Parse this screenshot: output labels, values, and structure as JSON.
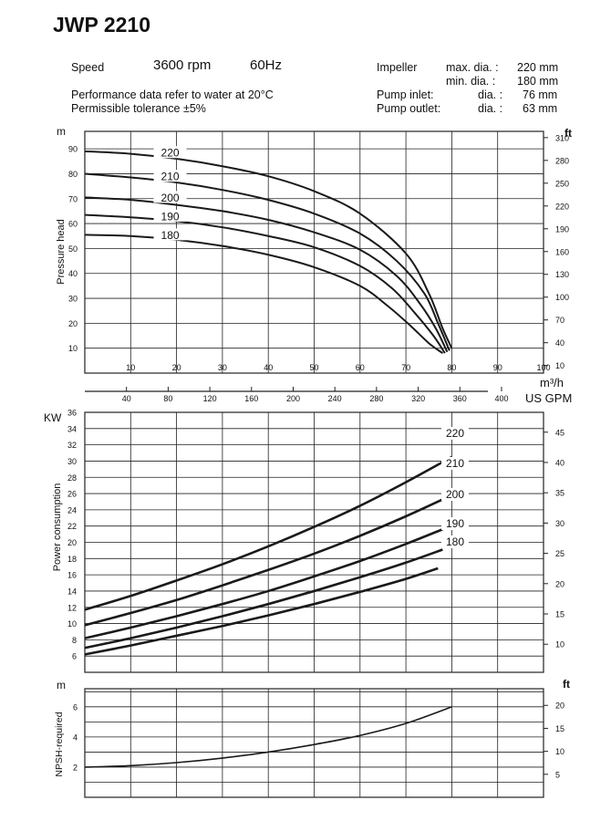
{
  "header": {
    "title": "JWP 2210",
    "speed_label": "Speed",
    "rpm": "3600 rpm",
    "frequency": "60Hz",
    "note_line1": "Performance data refer to water at 20°C",
    "note_line2": "Permissible tolerance ±5%",
    "impeller_label": "Impeller",
    "impeller_max_label": "max. dia. :",
    "impeller_max_value": "220 mm",
    "impeller_min_label": "min. dia. :",
    "impeller_min_value": "180 mm",
    "inlet_label": "Pump inlet:",
    "inlet_dia_label": "dia. :",
    "inlet_value": "76 mm",
    "outlet_label": "Pump outlet:",
    "outlet_dia_label": "dia. :",
    "outlet_value": "63 mm"
  },
  "colors": {
    "curve": "#1a1a1a",
    "grid": "#222222",
    "background": "#ffffff"
  },
  "chart_data": [
    {
      "type": "line",
      "id": "head",
      "ylabel": "Pressure head",
      "y_unit_left": "m",
      "y_unit_right": "ft",
      "xlabel_top": "m³/h",
      "xlabel_bottom": "US GPM",
      "x_ticks_m3h": [
        10,
        20,
        30,
        40,
        50,
        60,
        70,
        80,
        90,
        100
      ],
      "x_ticks_gpm": [
        40,
        80,
        120,
        160,
        200,
        240,
        280,
        320,
        360,
        400
      ],
      "y_ticks_left": [
        10,
        20,
        30,
        40,
        50,
        60,
        70,
        80,
        90
      ],
      "y_ticks_right": [
        10,
        40,
        70,
        100,
        130,
        160,
        190,
        220,
        250,
        280,
        310
      ],
      "xlim": [
        0,
        100
      ],
      "ylim": [
        0,
        97
      ],
      "grid": true,
      "series": [
        {
          "name": "220",
          "label_at": [
            18,
            88.5
          ],
          "x": [
            0,
            10,
            20,
            30,
            40,
            50,
            60,
            70,
            75,
            78,
            80
          ],
          "y": [
            89,
            88,
            86,
            83,
            79,
            73,
            64,
            48,
            32,
            18,
            10
          ]
        },
        {
          "name": "210",
          "label_at": [
            18,
            79
          ],
          "x": [
            0,
            10,
            20,
            30,
            40,
            50,
            60,
            68,
            74,
            77,
            79.5
          ],
          "y": [
            80,
            78.5,
            76.5,
            73.5,
            69.5,
            64,
            56,
            45,
            32,
            20,
            9
          ]
        },
        {
          "name": "200",
          "label_at": [
            18,
            70.5
          ],
          "x": [
            0,
            10,
            20,
            30,
            40,
            50,
            60,
            68,
            73,
            76.5,
            79
          ],
          "y": [
            70.5,
            69.5,
            67.5,
            65,
            61.5,
            56.5,
            49.5,
            39,
            28,
            18,
            8.5
          ]
        },
        {
          "name": "190",
          "label_at": [
            18,
            63
          ],
          "x": [
            0,
            10,
            20,
            30,
            40,
            50,
            60,
            67,
            72,
            76,
            78.5
          ],
          "y": [
            63.5,
            62.5,
            61,
            58.5,
            55,
            50.5,
            43,
            34,
            24,
            15,
            8
          ]
        },
        {
          "name": "180",
          "label_at": [
            18,
            55.5
          ],
          "x": [
            0,
            10,
            20,
            30,
            40,
            50,
            60,
            66,
            71,
            75,
            78
          ],
          "y": [
            55.5,
            55,
            53.5,
            51,
            47.5,
            42.5,
            35,
            27,
            19,
            12,
            8
          ]
        }
      ]
    },
    {
      "type": "line",
      "id": "power",
      "ylabel": "Power consumption",
      "y_unit_left": "KW",
      "xlim": [
        0,
        100
      ],
      "ylim": [
        4,
        36
      ],
      "y_ticks_left": [
        6,
        8,
        10,
        12,
        14,
        16,
        18,
        20,
        22,
        24,
        26,
        28,
        30,
        32,
        34,
        36
      ],
      "y_ticks_right": [
        10,
        15,
        20,
        25,
        30,
        35,
        40,
        45
      ],
      "grid": true,
      "series": [
        {
          "name": "220",
          "x": [
            0,
            10,
            20,
            30,
            40,
            50,
            60,
            70,
            80
          ],
          "y": [
            11.7,
            13.4,
            15.3,
            17.3,
            19.5,
            21.9,
            24.5,
            27.4,
            30.5
          ]
        },
        {
          "name": "210",
          "x": [
            0,
            10,
            20,
            30,
            40,
            50,
            60,
            70,
            80
          ],
          "y": [
            9.8,
            11.3,
            12.9,
            14.7,
            16.6,
            18.6,
            20.8,
            23.2,
            25.8
          ]
        },
        {
          "name": "200",
          "x": [
            0,
            10,
            20,
            30,
            40,
            50,
            60,
            70,
            78
          ],
          "y": [
            8.2,
            9.5,
            10.9,
            12.4,
            14.0,
            15.8,
            17.7,
            19.8,
            21.6
          ]
        },
        {
          "name": "190",
          "x": [
            0,
            10,
            20,
            30,
            40,
            50,
            60,
            70,
            78
          ],
          "y": [
            7.0,
            8.2,
            9.5,
            10.9,
            12.4,
            14.0,
            15.7,
            17.5,
            19.1
          ]
        },
        {
          "name": "180",
          "x": [
            0,
            10,
            20,
            30,
            40,
            50,
            60,
            70,
            77
          ],
          "y": [
            6.2,
            7.3,
            8.5,
            9.7,
            11.0,
            12.4,
            13.9,
            15.5,
            16.8
          ]
        }
      ]
    },
    {
      "type": "line",
      "id": "npsh",
      "ylabel": "NPSH-required",
      "y_unit_left": "m",
      "y_unit_right": "ft",
      "xlim": [
        0,
        100
      ],
      "ylim": [
        0,
        7.2
      ],
      "y_ticks_left": [
        2,
        4,
        6
      ],
      "y_ticks_right": [
        5,
        10,
        15,
        20
      ],
      "grid": true,
      "series": [
        {
          "x": [
            0,
            10,
            20,
            30,
            40,
            50,
            60,
            70,
            80
          ],
          "y": [
            2.0,
            2.1,
            2.3,
            2.6,
            3.0,
            3.5,
            4.1,
            4.9,
            6.0
          ]
        }
      ]
    }
  ]
}
